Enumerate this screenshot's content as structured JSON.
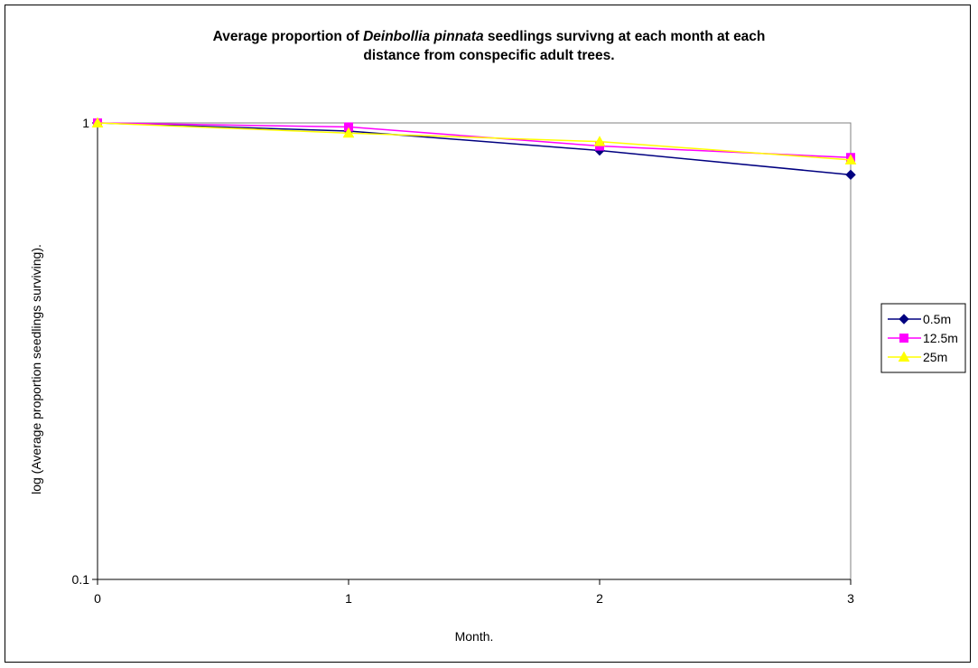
{
  "chart_data": {
    "type": "line",
    "title_parts": {
      "before": "Average proportion of ",
      "species": "Deinbollia pinnata",
      "after": " seedlings survivng at each month at each",
      "line2": "distance from conspecific adult trees."
    },
    "xlabel": "Month.",
    "ylabel": "log (Average proportion seedlings surviving).",
    "x": [
      0,
      1,
      2,
      3
    ],
    "x_ticks": [
      "0",
      "1",
      "2",
      "3"
    ],
    "y_scale": "log",
    "ylim": [
      0.1,
      1
    ],
    "y_ticks": [
      "0.1",
      "1"
    ],
    "grid": false,
    "legend_position": "right",
    "series": [
      {
        "name": "0.5m",
        "color": "#000080",
        "marker": "diamond",
        "values": [
          1.0,
          0.96,
          0.87,
          0.77
        ]
      },
      {
        "name": "12.5m",
        "color": "#ff00ff",
        "marker": "square",
        "values": [
          1.0,
          0.98,
          0.89,
          0.84
        ]
      },
      {
        "name": "25m",
        "color": "#ffff00",
        "marker": "triangle",
        "values": [
          1.0,
          0.95,
          0.91,
          0.83
        ]
      }
    ]
  }
}
